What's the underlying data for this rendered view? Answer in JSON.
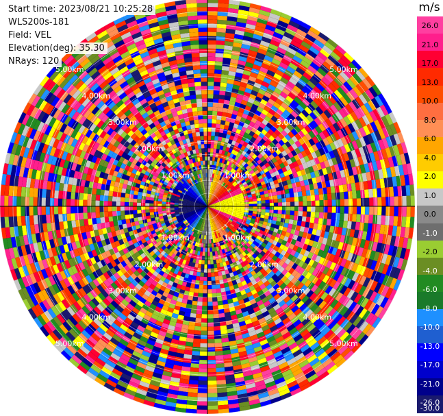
{
  "info": {
    "start_time": "Start time: 2023/08/21 10:25:28",
    "instrument": "WLS200s-181",
    "field": "Field: VEL",
    "elevation": "Elevation(deg): 35.30",
    "nrays": "NRays: 120"
  },
  "ppi": {
    "range_labels": [
      "1.00km",
      "2.00km",
      "3.00km",
      "4.00km",
      "5.00km"
    ],
    "ring_count": 50
  },
  "colorbar": {
    "unit": "m/s",
    "levels": [
      "26.0",
      "21.0",
      "17.0",
      "13.0",
      "10.0",
      "8.0",
      "6.0",
      "4.0",
      "2.0",
      "1.0",
      "0.0",
      "-1.0",
      "-2.0",
      "-4.0",
      "-6.0",
      "-8.0",
      "-10.0",
      "-13.0",
      "-17.0",
      "-21.0",
      "-26.0",
      "-30.0"
    ],
    "colors": [
      "#ff3fa0",
      "#ff1f8c",
      "#ff0033",
      "#ff2a00",
      "#ff4d00",
      "#ff6e40",
      "#ff8f55",
      "#ffa600",
      "#ffcc00",
      "#ffff00",
      "#c8c8c8",
      "#8a8a8a",
      "#6e6e6e",
      "#9acd32",
      "#6b8e23",
      "#228b22",
      "#1a7a2a",
      "#1e90ff",
      "#1f5fd0",
      "#0000ff",
      "#0000cc",
      "#00008b",
      "#1a1a6e"
    ]
  }
}
